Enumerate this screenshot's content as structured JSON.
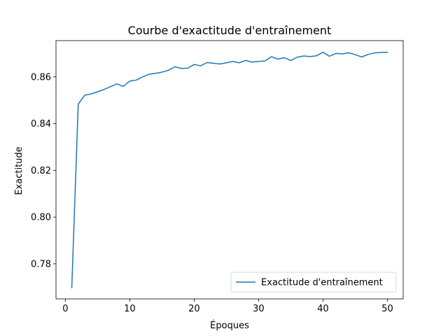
{
  "chart_data": {
    "type": "line",
    "title": "Courbe d'exactitude d'entraînement",
    "xlabel": "Époques",
    "ylabel": "Exactitude",
    "xlim": [
      -1.45,
      52.45
    ],
    "ylim": [
      0.765,
      0.8755
    ],
    "xticks": [
      0,
      10,
      20,
      30,
      40,
      50
    ],
    "xtick_labels": [
      "0",
      "10",
      "20",
      "30",
      "40",
      "50"
    ],
    "yticks": [
      0.78,
      0.8,
      0.82,
      0.84,
      0.86
    ],
    "ytick_labels": [
      "0.78",
      "0.80",
      "0.82",
      "0.84",
      "0.86"
    ],
    "grid": false,
    "legend_position": "lower-right",
    "series": [
      {
        "name": "Exactitude d'entraînement",
        "color": "#1f77b4",
        "x": [
          1,
          2,
          3,
          4,
          5,
          6,
          7,
          8,
          9,
          10,
          11,
          12,
          13,
          14,
          15,
          16,
          17,
          18,
          19,
          20,
          21,
          22,
          23,
          24,
          25,
          26,
          27,
          28,
          29,
          30,
          31,
          32,
          33,
          34,
          35,
          36,
          37,
          38,
          39,
          40,
          41,
          42,
          43,
          44,
          45,
          46,
          47,
          48,
          49,
          50
        ],
        "y": [
          0.7698,
          0.8483,
          0.8521,
          0.8527,
          0.8536,
          0.8546,
          0.8558,
          0.857,
          0.8559,
          0.8582,
          0.8586,
          0.86,
          0.8611,
          0.8615,
          0.862,
          0.8628,
          0.8643,
          0.8636,
          0.8637,
          0.8653,
          0.8647,
          0.8661,
          0.8658,
          0.8655,
          0.866,
          0.8666,
          0.866,
          0.867,
          0.8663,
          0.8666,
          0.8668,
          0.8686,
          0.8676,
          0.8682,
          0.867,
          0.8684,
          0.8689,
          0.8687,
          0.869,
          0.8705,
          0.8688,
          0.87,
          0.8698,
          0.8703,
          0.8695,
          0.8685,
          0.8696,
          0.8702,
          0.8705,
          0.8705
        ]
      }
    ]
  }
}
